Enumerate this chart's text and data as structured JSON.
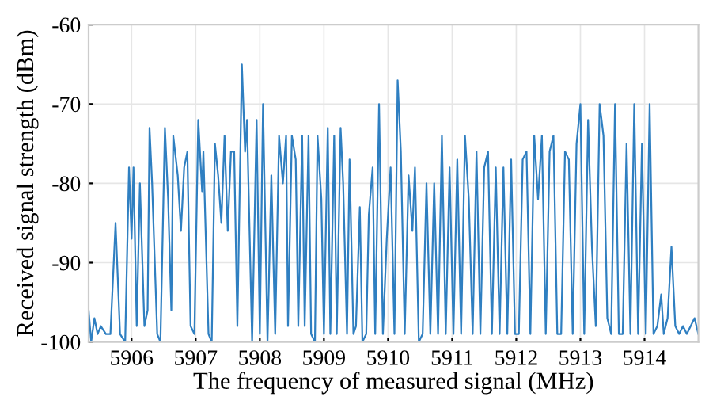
{
  "chart_data": {
    "type": "line",
    "xlabel": "The frequency of measured signal (MHz)",
    "ylabel": "Received signal strength (dBm)",
    "xlim": [
      5905.33,
      5914.84
    ],
    "ylim": [
      -100,
      -60
    ],
    "xticks": [
      5906,
      5907,
      5908,
      5909,
      5910,
      5911,
      5912,
      5913,
      5914
    ],
    "yticks": [
      -100,
      -90,
      -80,
      -70,
      -60
    ],
    "grid": true,
    "legend": false,
    "series": [
      {
        "color": "#2f7fc1",
        "x": [
          5905.33,
          5905.37,
          5905.42,
          5905.47,
          5905.52,
          5905.6,
          5905.67,
          5905.75,
          5905.82,
          5905.9,
          5905.96,
          5906.0,
          5906.03,
          5906.08,
          5906.13,
          5906.2,
          5906.25,
          5906.28,
          5906.32,
          5906.4,
          5906.45,
          5906.52,
          5906.57,
          5906.62,
          5906.65,
          5906.72,
          5906.77,
          5906.82,
          5906.87,
          5906.92,
          5906.98,
          5907.04,
          5907.1,
          5907.12,
          5907.2,
          5907.25,
          5907.3,
          5907.35,
          5907.4,
          5907.45,
          5907.5,
          5907.55,
          5907.6,
          5907.65,
          5907.72,
          5907.77,
          5907.8,
          5907.88,
          5907.95,
          5908.0,
          5908.05,
          5908.12,
          5908.18,
          5908.24,
          5908.3,
          5908.36,
          5908.41,
          5908.44,
          5908.5,
          5908.56,
          5908.6,
          5908.66,
          5908.7,
          5908.76,
          5908.8,
          5908.86,
          5908.9,
          5908.96,
          5909.0,
          5909.06,
          5909.1,
          5909.16,
          5909.2,
          5909.26,
          5909.3,
          5909.36,
          5909.4,
          5909.46,
          5909.5,
          5909.56,
          5909.6,
          5909.66,
          5909.7,
          5909.76,
          5909.8,
          5909.86,
          5909.92,
          5909.98,
          5910.04,
          5910.1,
          5910.15,
          5910.2,
          5910.26,
          5910.32,
          5910.38,
          5910.42,
          5910.48,
          5910.54,
          5910.6,
          5910.66,
          5910.72,
          5910.78,
          5910.84,
          5910.9,
          5910.96,
          5911.02,
          5911.08,
          5911.14,
          5911.2,
          5911.26,
          5911.32,
          5911.38,
          5911.44,
          5911.5,
          5911.56,
          5911.62,
          5911.68,
          5911.74,
          5911.8,
          5911.86,
          5911.92,
          5911.98,
          5912.04,
          5912.1,
          5912.16,
          5912.22,
          5912.28,
          5912.34,
          5912.4,
          5912.46,
          5912.52,
          5912.58,
          5912.64,
          5912.7,
          5912.76,
          5912.82,
          5912.88,
          5912.94,
          5913.0,
          5913.06,
          5913.12,
          5913.18,
          5913.24,
          5913.3,
          5913.36,
          5913.42,
          5913.48,
          5913.54,
          5913.6,
          5913.66,
          5913.72,
          5913.78,
          5913.84,
          5913.9,
          5913.96,
          5914.02,
          5914.08,
          5914.14,
          5914.2,
          5914.26,
          5914.3,
          5914.36,
          5914.42,
          5914.48,
          5914.54,
          5914.6,
          5914.66,
          5914.72,
          5914.78,
          5914.84
        ],
        "values": [
          -96,
          -100,
          -97,
          -99,
          -98,
          -99,
          -99,
          -85,
          -99,
          -100,
          -78,
          -87,
          -78,
          -98,
          -80,
          -98,
          -96,
          -73,
          -80,
          -99,
          -100,
          -73,
          -82,
          -96,
          -74,
          -79,
          -86,
          -78,
          -76,
          -98,
          -99,
          -72,
          -81,
          -76,
          -99,
          -100,
          -75,
          -79,
          -85,
          -74,
          -86,
          -76,
          -76,
          -98,
          -65,
          -76,
          -72,
          -100,
          -72,
          -99,
          -70,
          -100,
          -79,
          -99,
          -74,
          -80,
          -74,
          -98,
          -74,
          -77,
          -98,
          -74,
          -98,
          -74,
          -99,
          -100,
          -74,
          -82,
          -99,
          -73,
          -99,
          -74,
          -99,
          -73,
          -80,
          -99,
          -77,
          -99,
          -98,
          -83,
          -100,
          -99,
          -84,
          -78,
          -99,
          -70,
          -99,
          -87,
          -78,
          -99,
          -67,
          -76,
          -99,
          -79,
          -86,
          -78,
          -100,
          -99,
          -80,
          -99,
          -80,
          -99,
          -74,
          -99,
          -78,
          -99,
          -77,
          -99,
          -74,
          -82,
          -99,
          -76,
          -99,
          -78,
          -76,
          -99,
          -78,
          -99,
          -78,
          -99,
          -77,
          -99,
          -99,
          -77,
          -76,
          -99,
          -74,
          -82,
          -74,
          -99,
          -76,
          -74,
          -99,
          -99,
          -76,
          -77,
          -99,
          -75,
          -70,
          -99,
          -72,
          -88,
          -98,
          -70,
          -74,
          -97,
          -99,
          -70,
          -99,
          -99,
          -75,
          -99,
          -70,
          -99,
          -75,
          -99,
          -70,
          -99,
          -98,
          -94,
          -99,
          -97,
          -88,
          -98,
          -99,
          -98,
          -99,
          -98,
          -97,
          -99
        ]
      }
    ]
  }
}
